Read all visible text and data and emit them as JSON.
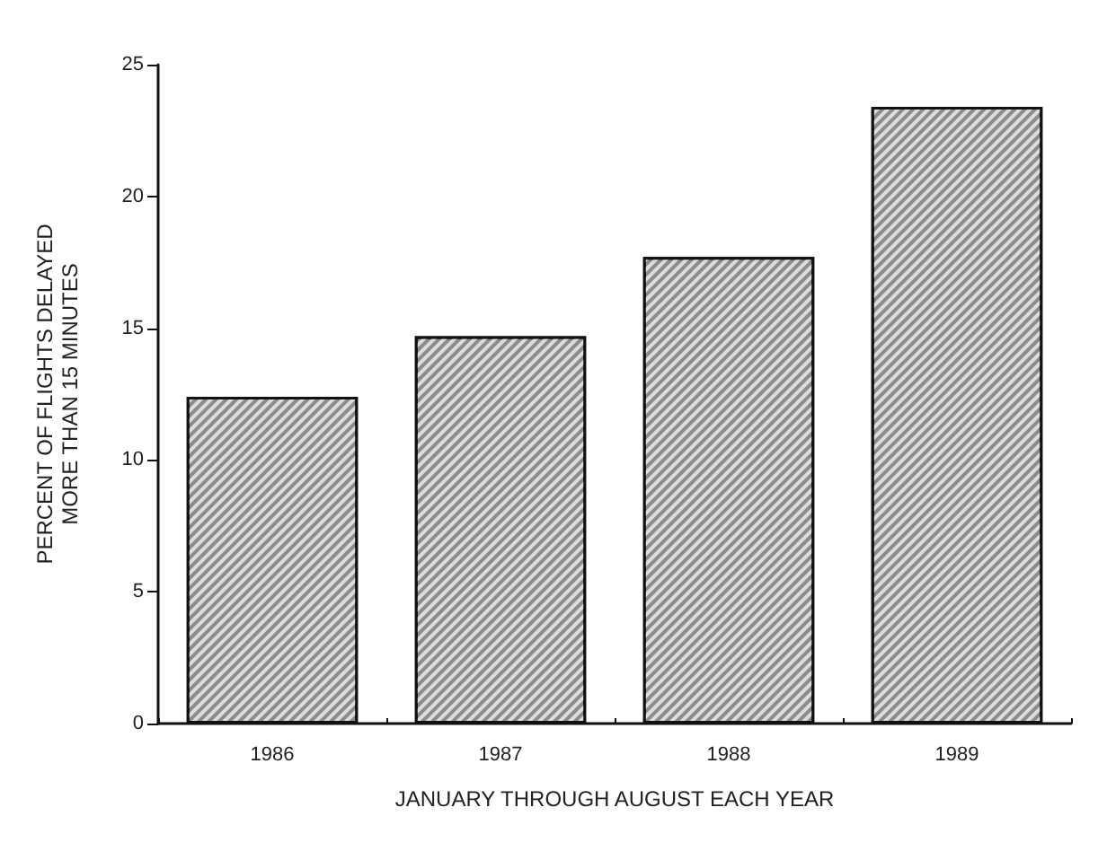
{
  "chart_data": {
    "type": "bar",
    "xlabel": "JANUARY THROUGH AUGUST EACH YEAR",
    "ylabel": "PERCENT OF FLIGHTS DELAYED\nMORE THAN 15 MINUTES",
    "categories": [
      "1986",
      "1987",
      "1988",
      "1989"
    ],
    "values": [
      12.4,
      14.7,
      17.7,
      23.4
    ],
    "color": "#8c8c8c",
    "ylim": [
      0,
      25
    ],
    "yticks": [
      0,
      5,
      10,
      15,
      20,
      25
    ],
    "grid": false
  }
}
